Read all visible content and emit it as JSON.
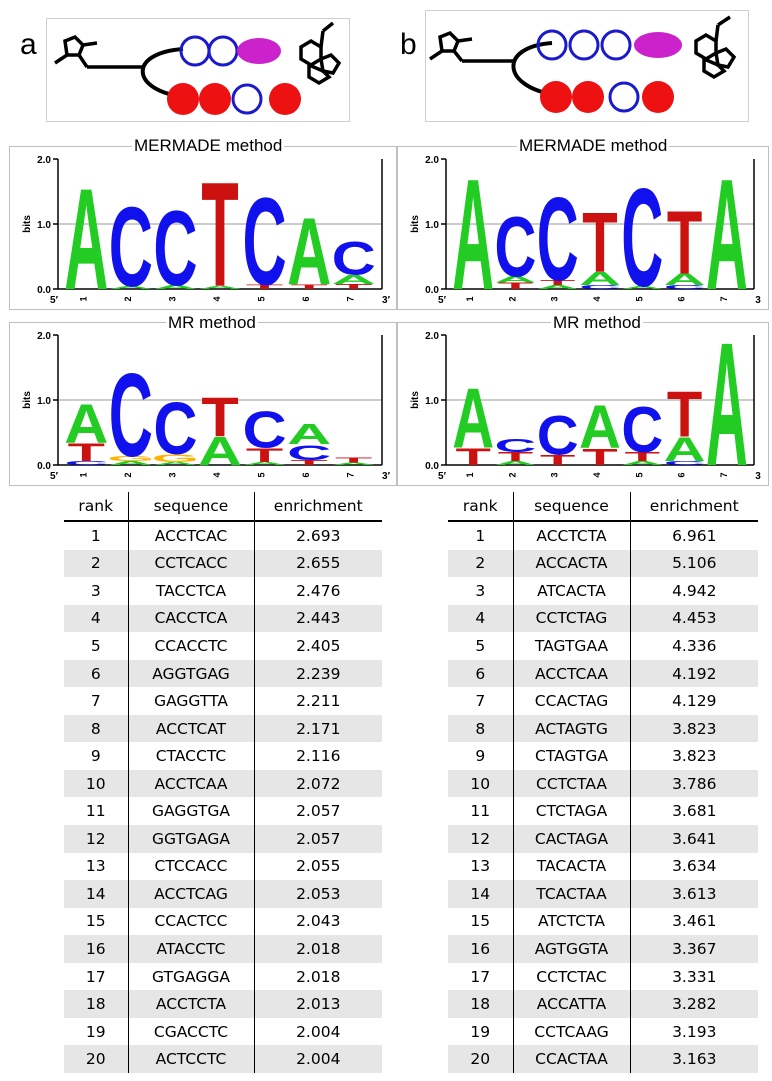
{
  "panels": [
    {
      "letter": "a",
      "logos": [
        {
          "title": "MERMADE method",
          "ytick_top": "2.0",
          "ytick_mid": "1.0",
          "ytick_bottom": "0.0",
          "ylabel": "bits",
          "five_prime": "5′",
          "three_prime": "3′",
          "positions": [
            "1",
            "2",
            "3",
            "4",
            "5",
            "6",
            "7"
          ],
          "columns": [
            [
              {
                "l": "A",
                "h": 1.6
              }
            ],
            [
              {
                "l": "C",
                "h": 1.25
              },
              {
                "l": "A",
                "h": 0.05
              }
            ],
            [
              {
                "l": "C",
                "h": 1.18
              },
              {
                "l": "A",
                "h": 0.06
              }
            ],
            [
              {
                "l": "T",
                "h": 1.65
              },
              {
                "l": "A",
                "h": 0.05
              }
            ],
            [
              {
                "l": "C",
                "h": 1.38
              },
              {
                "l": "T",
                "h": 0.07
              }
            ],
            [
              {
                "l": "A",
                "h": 1.06
              },
              {
                "l": "T",
                "h": 0.07
              }
            ],
            [
              {
                "l": "C",
                "h": 0.52
              },
              {
                "l": "A",
                "h": 0.14
              },
              {
                "l": "T",
                "h": 0.08
              }
            ]
          ]
        },
        {
          "title": "MR method",
          "ytick_top": "2.0",
          "ytick_mid": "1.0",
          "ytick_bottom": "0.0",
          "ylabel": "bits",
          "five_prime": "5′",
          "three_prime": "3′",
          "positions": [
            "1",
            "2",
            "3",
            "4",
            "5",
            "6",
            "7"
          ],
          "columns": [
            [
              {
                "l": "A",
                "h": 0.62
              },
              {
                "l": "T",
                "h": 0.28
              },
              {
                "l": "C",
                "h": 0.06
              }
            ],
            [
              {
                "l": "C",
                "h": 1.32
              },
              {
                "l": "G",
                "h": 0.08
              },
              {
                "l": "A",
                "h": 0.06
              }
            ],
            [
              {
                "l": "C",
                "h": 0.82
              },
              {
                "l": "G",
                "h": 0.12
              },
              {
                "l": "A",
                "h": 0.05
              }
            ],
            [
              {
                "l": "T",
                "h": 0.62
              },
              {
                "l": "A",
                "h": 0.45
              }
            ],
            [
              {
                "l": "C",
                "h": 0.58
              },
              {
                "l": "T",
                "h": 0.22
              },
              {
                "l": "A",
                "h": 0.05
              }
            ],
            [
              {
                "l": "A",
                "h": 0.32
              },
              {
                "l": "C",
                "h": 0.24
              },
              {
                "l": "T",
                "h": 0.08
              }
            ],
            [
              {
                "l": "T",
                "h": 0.08
              },
              {
                "l": "A",
                "h": 0.04
              }
            ]
          ]
        }
      ],
      "table": {
        "headers": [
          "rank",
          "sequence",
          "enrichment"
        ],
        "rows": [
          [
            "1",
            "ACCTCAC",
            "2.693"
          ],
          [
            "2",
            "CCTCACC",
            "2.655"
          ],
          [
            "3",
            "TACCTCA",
            "2.476"
          ],
          [
            "4",
            "CACCTCA",
            "2.443"
          ],
          [
            "5",
            "CCACCTC",
            "2.405"
          ],
          [
            "6",
            "AGGTGAG",
            "2.239"
          ],
          [
            "7",
            "GAGGTTA",
            "2.211"
          ],
          [
            "8",
            "ACCTCAT",
            "2.171"
          ],
          [
            "9",
            "CTACCTC",
            "2.116"
          ],
          [
            "10",
            "ACCTCAA",
            "2.072"
          ],
          [
            "11",
            "GAGGTGA",
            "2.057"
          ],
          [
            "12",
            "GGTGAGA",
            "2.057"
          ],
          [
            "13",
            "CTCCACC",
            "2.055"
          ],
          [
            "14",
            "ACCTCAG",
            "2.053"
          ],
          [
            "15",
            "CCACTCC",
            "2.043"
          ],
          [
            "16",
            "ATACCTC",
            "2.018"
          ],
          [
            "17",
            "GTGAGGA",
            "2.018"
          ],
          [
            "18",
            "ACCTCTA",
            "2.013"
          ],
          [
            "19",
            "CGACCTC",
            "2.004"
          ],
          [
            "20",
            "ACTCCTC",
            "2.004"
          ]
        ]
      }
    },
    {
      "letter": "b",
      "logos": [
        {
          "title": "MERMADE method",
          "ytick_top": "2.0",
          "ytick_mid": "1.0",
          "ytick_bottom": "0.0",
          "ylabel": "bits",
          "five_prime": "5′",
          "three_prime": "3",
          "positions": [
            "1",
            "2",
            "3",
            "4",
            "5",
            "6",
            "7"
          ],
          "columns": [
            [
              {
                "l": "A",
                "h": 1.75
              }
            ],
            [
              {
                "l": "C",
                "h": 0.95
              },
              {
                "l": "T",
                "h": 0.1
              },
              {
                "l": "A",
                "h": 0.1
              }
            ],
            [
              {
                "l": "C",
                "h": 1.32
              },
              {
                "l": "T",
                "h": 0.08
              },
              {
                "l": "A",
                "h": 0.06
              }
            ],
            [
              {
                "l": "T",
                "h": 0.95
              },
              {
                "l": "A",
                "h": 0.2
              },
              {
                "l": "C",
                "h": 0.06
              }
            ],
            [
              {
                "l": "C",
                "h": 1.55
              },
              {
                "l": "A",
                "h": 0.05
              }
            ],
            [
              {
                "l": "T",
                "h": 1.0
              },
              {
                "l": "A",
                "h": 0.18
              },
              {
                "l": "C",
                "h": 0.06
              }
            ],
            [
              {
                "l": "A",
                "h": 1.75
              }
            ]
          ]
        },
        {
          "title": "MR method",
          "ytick_top": "2.0",
          "ytick_mid": "1.0",
          "ytick_bottom": "0.0",
          "ylabel": "bits",
          "five_prime": "5′",
          "three_prime": "3",
          "positions": [
            "1",
            "2",
            "3",
            "4",
            "5",
            "6",
            "7"
          ],
          "columns": [
            [
              {
                "l": "A",
                "h": 0.95
              },
              {
                "l": "T",
                "h": 0.27
              }
            ],
            [
              {
                "l": "C",
                "h": 0.2
              },
              {
                "l": "T",
                "h": 0.14
              },
              {
                "l": "A",
                "h": 0.06
              }
            ],
            [
              {
                "l": "C",
                "h": 0.62
              },
              {
                "l": "T",
                "h": 0.16
              }
            ],
            [
              {
                "l": "A",
                "h": 0.68
              },
              {
                "l": "T",
                "h": 0.26
              }
            ],
            [
              {
                "l": "C",
                "h": 0.72
              },
              {
                "l": "T",
                "h": 0.14
              },
              {
                "l": "A",
                "h": 0.06
              }
            ],
            [
              {
                "l": "T",
                "h": 0.72
              },
              {
                "l": "A",
                "h": 0.38
              },
              {
                "l": "C",
                "h": 0.06
              }
            ],
            [
              {
                "l": "A",
                "h": 1.95
              }
            ]
          ]
        }
      ],
      "table": {
        "headers": [
          "rank",
          "sequence",
          "enrichment"
        ],
        "rows": [
          [
            "1",
            "ACCTCTA",
            "6.961"
          ],
          [
            "2",
            "ACCACTA",
            "5.106"
          ],
          [
            "3",
            "ATCACTA",
            "4.942"
          ],
          [
            "4",
            "CCTCTAG",
            "4.453"
          ],
          [
            "5",
            "TAGTGAA",
            "4.336"
          ],
          [
            "6",
            "ACCTCAA",
            "4.192"
          ],
          [
            "7",
            "CCACTAG",
            "4.129"
          ],
          [
            "8",
            "ACTAGTG",
            "3.823"
          ],
          [
            "9",
            "CTAGTGA",
            "3.823"
          ],
          [
            "10",
            "CCTCTAA",
            "3.786"
          ],
          [
            "11",
            "CTCTAGA",
            "3.681"
          ],
          [
            "12",
            "CACTAGA",
            "3.641"
          ],
          [
            "13",
            "TACACTA",
            "3.634"
          ],
          [
            "14",
            "TCACTAA",
            "3.613"
          ],
          [
            "15",
            "ATCTCTA",
            "3.461"
          ],
          [
            "16",
            "AGTGGTA",
            "3.367"
          ],
          [
            "17",
            "CCTCTAC",
            "3.331"
          ],
          [
            "18",
            "ACCATTA",
            "3.282"
          ],
          [
            "19",
            "CCTCAAG",
            "3.193"
          ],
          [
            "20",
            "CCACTAA",
            "3.163"
          ]
        ]
      }
    }
  ],
  "colors": {
    "A": "#22cc22",
    "C": "#1111ee",
    "G": "#ffb300",
    "T": "#cc1111",
    "blue_ring": "#1a1acc",
    "red_disc": "#ee1111",
    "magenta": "#cc22cc"
  }
}
